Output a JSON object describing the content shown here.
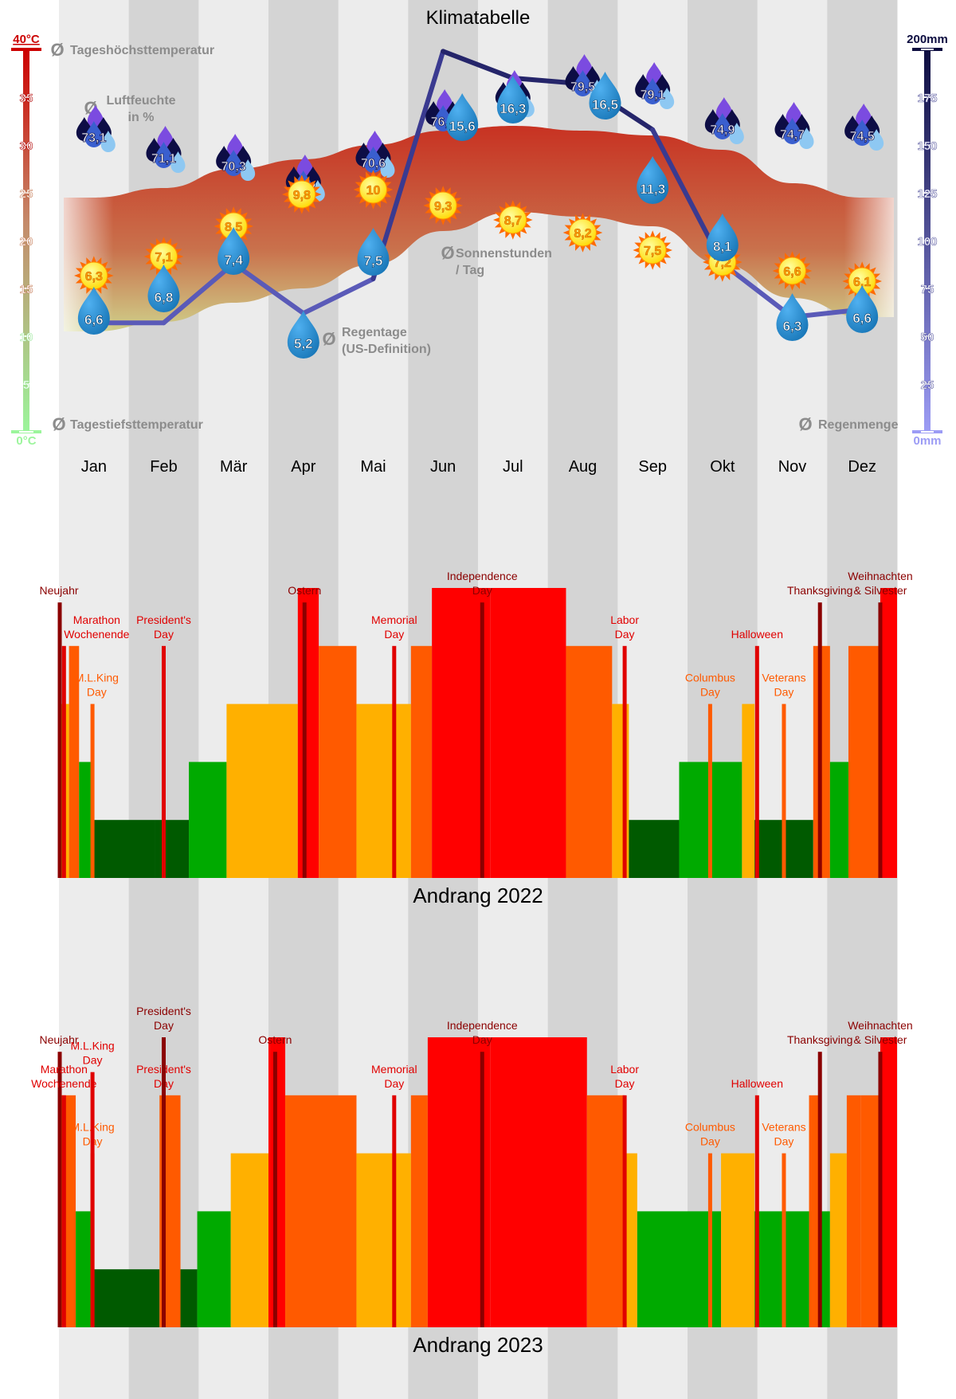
{
  "months": [
    "Jan",
    "Feb",
    "Mär",
    "Apr",
    "Mai",
    "Jun",
    "Jul",
    "Aug",
    "Sep",
    "Okt",
    "Nov",
    "Dez"
  ],
  "climate": {
    "title": "Klimatabelle",
    "labels": {
      "max_temp": "Tageshöchsttemperatur",
      "min_temp": "Tagestiefsttemperatur",
      "humidity_1": "Luftfeuchte",
      "humidity_2": "in %",
      "sun_1": "Sonnenstunden",
      "sun_2": "/ Tag",
      "rain_days_1": "Regentage",
      "rain_days_2": "(US-Definition)",
      "rainfall": "Regenmenge",
      "avg_symbol": "Ø"
    },
    "temp_axis": {
      "labels": [
        "40°C",
        "35",
        "30",
        "25",
        "20",
        "15",
        "10",
        "5",
        "0°C"
      ],
      "min": 0,
      "max": 40
    },
    "rain_axis": {
      "labels": [
        "200mm",
        "175",
        "150",
        "125",
        "100",
        "75",
        "50",
        "25",
        "0mm"
      ],
      "min": 0,
      "max": 200
    },
    "colors": {
      "temp_top": "#cc0000",
      "temp_bottom": "#9cf59c",
      "rain_top": "#0d0d40",
      "rain_bottom": "#9c9cf5",
      "band_top": "#c83222",
      "band_bottom": "#cfd08a",
      "drop": "#1573b4",
      "rain_line": "#2a2a7a"
    }
  },
  "chart_data": [
    {
      "type": "line",
      "title": "Klimatabelle",
      "categories": [
        "Jan",
        "Feb",
        "Mär",
        "Apr",
        "Mai",
        "Jun",
        "Jul",
        "Aug",
        "Sep",
        "Okt",
        "Nov",
        "Dez"
      ],
      "series": [
        {
          "name": "Tageshöchsttemperatur",
          "unit": "°C",
          "values": [
            24.5,
            25.5,
            27.5,
            28.5,
            30.0,
            31.5,
            32.0,
            31.5,
            31.0,
            29.5,
            26.0,
            24.5
          ]
        },
        {
          "name": "Tagestiefsttemperatur",
          "unit": "°C",
          "values": [
            10.5,
            11.5,
            13.5,
            15.0,
            17.5,
            21.0,
            23.0,
            22.5,
            21.5,
            17.5,
            14.0,
            12.0
          ]
        },
        {
          "name": "Luftfeuchte in %",
          "values": [
            "73,1",
            "71,1",
            "70,3",
            "67,2",
            "70,6",
            "76,4",
            "78,2",
            "79,5",
            "79,1",
            "74,9",
            "74,7",
            "74,5"
          ]
        },
        {
          "name": "Sonnenstunden / Tag",
          "values": [
            "6,3",
            "7,1",
            "8,5",
            "9,8",
            "10",
            "9,3",
            "8,7",
            "8,2",
            "7,5",
            "7,2",
            "6,6",
            "6,1"
          ]
        },
        {
          "name": "Regentage (US-Definition)",
          "values": [
            "6,6",
            "6,8",
            "7,4",
            "5,2",
            "7,5",
            "15,6",
            "16,3",
            "16,5",
            "11,3",
            "8,1",
            "6,3",
            "6,6"
          ]
        },
        {
          "name": "Regenmenge",
          "unit": "mm",
          "values": [
            57,
            57,
            88,
            62,
            80,
            199,
            185,
            182,
            158,
            88,
            60,
            64
          ]
        }
      ],
      "ylim_temp": [
        0,
        40
      ],
      "ylim_rain": [
        0,
        200
      ]
    },
    {
      "type": "bar",
      "title": "Andrang 2022",
      "levels": 5,
      "segments": [
        [
          0,
          0.012,
          3
        ],
        [
          0.012,
          0.024,
          4
        ],
        [
          0.024,
          0.04,
          2
        ],
        [
          0.04,
          0.115,
          1
        ],
        [
          0.115,
          0.155,
          1
        ],
        [
          0.155,
          0.2,
          2
        ],
        [
          0.2,
          0.285,
          3
        ],
        [
          0.285,
          0.31,
          5
        ],
        [
          0.31,
          0.355,
          4
        ],
        [
          0.355,
          0.42,
          3
        ],
        [
          0.42,
          0.445,
          4
        ],
        [
          0.445,
          0.515,
          5
        ],
        [
          0.515,
          0.605,
          5
        ],
        [
          0.605,
          0.66,
          4
        ],
        [
          0.66,
          0.68,
          3
        ],
        [
          0.68,
          0.74,
          1
        ],
        [
          0.74,
          0.815,
          2
        ],
        [
          0.815,
          0.83,
          3
        ],
        [
          0.83,
          0.9,
          1
        ],
        [
          0.9,
          0.92,
          4
        ],
        [
          0.92,
          0.942,
          2
        ],
        [
          0.942,
          0.98,
          4
        ],
        [
          0.98,
          1.0,
          5
        ]
      ],
      "events": [
        {
          "pos": 0.0,
          "level": 5,
          "height": 0.95,
          "lines": [
            "Neujahr"
          ],
          "lx": 0.0,
          "ly": 0.95,
          "color": "dark"
        },
        {
          "pos": 0.006,
          "level": 4,
          "height": 0.8,
          "lines": [
            "Marathon",
            "Wochenende"
          ],
          "lx": 0.045,
          "ly": 0.8,
          "color": "red"
        },
        {
          "pos": 0.04,
          "level": 3,
          "height": 0.6,
          "lines": [
            "M.L.King",
            "Day"
          ],
          "lx": 0.045,
          "ly": 0.6,
          "color": "orange"
        },
        {
          "pos": 0.125,
          "level": 4,
          "height": 0.8,
          "lines": [
            "President's",
            "Day"
          ],
          "lx": 0.125,
          "ly": 0.8,
          "color": "red"
        },
        {
          "pos": 0.293,
          "level": 5,
          "height": 0.95,
          "lines": [
            "Ostern"
          ],
          "lx": 0.293,
          "ly": 0.95,
          "color": "dark"
        },
        {
          "pos": 0.4,
          "level": 4,
          "height": 0.8,
          "lines": [
            "Memorial",
            "Day"
          ],
          "lx": 0.4,
          "ly": 0.8,
          "color": "red"
        },
        {
          "pos": 0.505,
          "level": 5,
          "height": 0.95,
          "lines": [
            "Independence",
            "Day"
          ],
          "lx": 0.505,
          "ly": 0.95,
          "color": "dark"
        },
        {
          "pos": 0.675,
          "level": 4,
          "height": 0.8,
          "lines": [
            "Labor",
            "Day"
          ],
          "lx": 0.675,
          "ly": 0.8,
          "color": "red"
        },
        {
          "pos": 0.777,
          "level": 3,
          "height": 0.6,
          "lines": [
            "Columbus",
            "Day"
          ],
          "lx": 0.777,
          "ly": 0.6,
          "color": "orange"
        },
        {
          "pos": 0.833,
          "level": 4,
          "height": 0.8,
          "lines": [
            "Halloween"
          ],
          "lx": 0.833,
          "ly": 0.8,
          "color": "red"
        },
        {
          "pos": 0.865,
          "level": 3,
          "height": 0.6,
          "lines": [
            "Veterans",
            "Day"
          ],
          "lx": 0.865,
          "ly": 0.6,
          "color": "orange"
        },
        {
          "pos": 0.908,
          "level": 5,
          "height": 0.95,
          "lines": [
            "Thanksgiving"
          ],
          "lx": 0.908,
          "ly": 0.95,
          "color": "dark"
        },
        {
          "pos": 0.98,
          "level": 5,
          "height": 0.95,
          "lines": [
            "Weihnachten",
            "& Silvester"
          ],
          "lx": 0.98,
          "ly": 0.95,
          "color": "dark"
        }
      ]
    },
    {
      "type": "bar",
      "title": "Andrang 2023",
      "levels": 5,
      "segments": [
        [
          0,
          0.02,
          4
        ],
        [
          0.02,
          0.04,
          2
        ],
        [
          0.04,
          0.12,
          1
        ],
        [
          0.12,
          0.145,
          4
        ],
        [
          0.145,
          0.165,
          1
        ],
        [
          0.165,
          0.205,
          2
        ],
        [
          0.205,
          0.25,
          3
        ],
        [
          0.25,
          0.27,
          5
        ],
        [
          0.27,
          0.355,
          4
        ],
        [
          0.355,
          0.42,
          3
        ],
        [
          0.42,
          0.44,
          4
        ],
        [
          0.44,
          0.515,
          5
        ],
        [
          0.515,
          0.63,
          5
        ],
        [
          0.63,
          0.675,
          4
        ],
        [
          0.675,
          0.69,
          3
        ],
        [
          0.69,
          0.79,
          2
        ],
        [
          0.79,
          0.83,
          3
        ],
        [
          0.83,
          0.895,
          2
        ],
        [
          0.895,
          0.91,
          4
        ],
        [
          0.91,
          0.92,
          2
        ],
        [
          0.92,
          0.94,
          3
        ],
        [
          0.94,
          0.957,
          4
        ],
        [
          0.957,
          0.98,
          4
        ],
        [
          0.98,
          1.0,
          5
        ]
      ],
      "events": [
        {
          "pos": 0.0,
          "level": 5,
          "height": 0.95,
          "lines": [
            "Neujahr"
          ],
          "lx": 0.0,
          "ly": 0.95,
          "color": "dark"
        },
        {
          "pos": 0.006,
          "level": 4,
          "height": 0.8,
          "lines": [
            "Marathon",
            "Wochenende"
          ],
          "lx": 0.006,
          "ly": 0.8,
          "color": "red"
        },
        {
          "pos": 0.04,
          "level": 3,
          "height": 0.6,
          "lines": [
            "M.L.King",
            "Day"
          ],
          "lx": 0.04,
          "ly": 0.6,
          "color": "orange"
        },
        {
          "pos": 0.04,
          "level": 5,
          "height": 0.88,
          "lines": [
            "M.L.King",
            "Day"
          ],
          "lx": 0.04,
          "ly": 0.88,
          "color": "red"
        },
        {
          "pos": 0.125,
          "level": 4,
          "height": 0.8,
          "lines": [
            "President's",
            "Day"
          ],
          "lx": 0.125,
          "ly": 0.8,
          "color": "red"
        },
        {
          "pos": 0.125,
          "level": 5,
          "height": 1.0,
          "lines": [
            "President's",
            "Day"
          ],
          "lx": 0.125,
          "ly": 1.02,
          "color": "dark"
        },
        {
          "pos": 0.258,
          "level": 5,
          "height": 0.95,
          "lines": [
            "Ostern"
          ],
          "lx": 0.258,
          "ly": 0.95,
          "color": "dark"
        },
        {
          "pos": 0.4,
          "level": 4,
          "height": 0.8,
          "lines": [
            "Memorial",
            "Day"
          ],
          "lx": 0.4,
          "ly": 0.8,
          "color": "red"
        },
        {
          "pos": 0.505,
          "level": 5,
          "height": 0.95,
          "lines": [
            "Independence",
            "Day"
          ],
          "lx": 0.505,
          "ly": 0.95,
          "color": "dark"
        },
        {
          "pos": 0.675,
          "level": 4,
          "height": 0.8,
          "lines": [
            "Labor",
            "Day"
          ],
          "lx": 0.675,
          "ly": 0.8,
          "color": "red"
        },
        {
          "pos": 0.777,
          "level": 3,
          "height": 0.6,
          "lines": [
            "Columbus",
            "Day"
          ],
          "lx": 0.777,
          "ly": 0.6,
          "color": "orange"
        },
        {
          "pos": 0.833,
          "level": 4,
          "height": 0.8,
          "lines": [
            "Halloween"
          ],
          "lx": 0.833,
          "ly": 0.8,
          "color": "red"
        },
        {
          "pos": 0.865,
          "level": 3,
          "height": 0.6,
          "lines": [
            "Veterans",
            "Day"
          ],
          "lx": 0.865,
          "ly": 0.6,
          "color": "orange"
        },
        {
          "pos": 0.908,
          "level": 5,
          "height": 0.95,
          "lines": [
            "Thanksgiving"
          ],
          "lx": 0.908,
          "ly": 0.95,
          "color": "dark"
        },
        {
          "pos": 0.98,
          "level": 5,
          "height": 0.95,
          "lines": [
            "Weihnachten",
            "& Silvester"
          ],
          "lx": 0.98,
          "ly": 0.95,
          "color": "dark"
        }
      ]
    }
  ],
  "crowd_colors": [
    "#005a00",
    "#00aa00",
    "#ffb000",
    "#ff5a00",
    "#ff0000"
  ],
  "event_colors": {
    "dark": "#8b0000",
    "red": "#e00000",
    "orange": "#ff5a00"
  }
}
